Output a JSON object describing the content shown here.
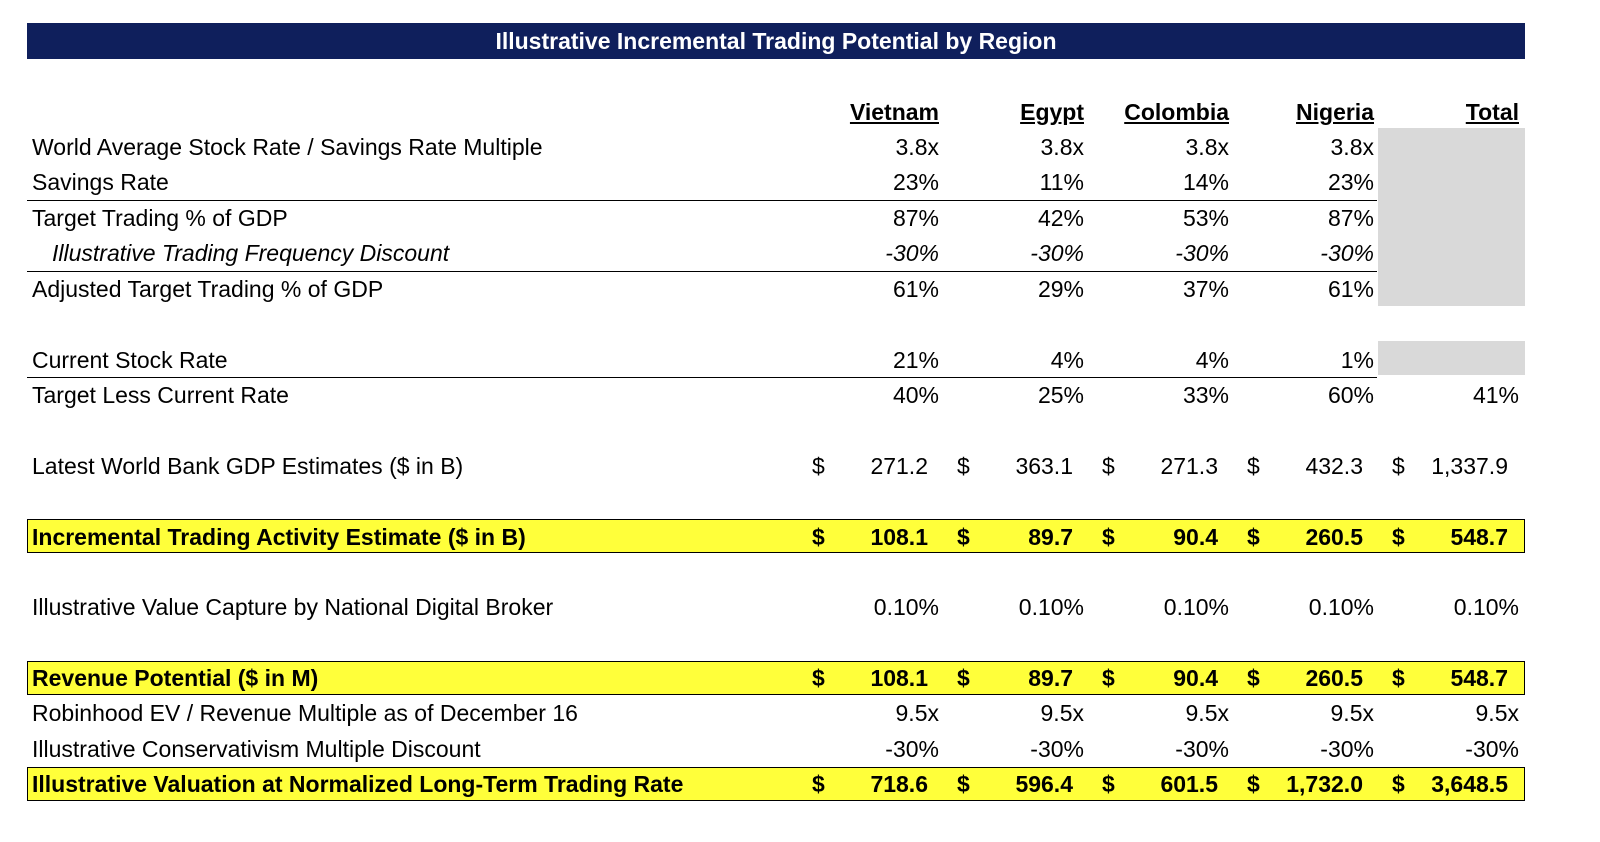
{
  "title": "Illustrative Incremental Trading Potential by Region",
  "colors": {
    "banner": "#0f1f5c",
    "highlight": "#ffff3a",
    "shade": "#d9d9d9"
  },
  "columns": [
    "Vietnam",
    "Egypt",
    "Colombia",
    "Nigeria",
    "Total"
  ],
  "rows": [
    {
      "label": "World Average Stock Rate / Savings Rate Multiple",
      "values": [
        "3.8x",
        "3.8x",
        "3.8x",
        "3.8x",
        ""
      ]
    },
    {
      "label": "Savings Rate",
      "values": [
        "23%",
        "11%",
        "14%",
        "23%",
        ""
      ]
    },
    {
      "label": "Target Trading % of GDP",
      "values": [
        "87%",
        "42%",
        "53%",
        "87%",
        ""
      ]
    },
    {
      "label": "Illustrative Trading Frequency Discount",
      "values": [
        "-30%",
        "-30%",
        "-30%",
        "-30%",
        ""
      ]
    },
    {
      "label": "Adjusted Target Trading % of GDP",
      "values": [
        "61%",
        "29%",
        "37%",
        "61%",
        ""
      ]
    },
    {
      "label": "Current Stock Rate",
      "values": [
        "21%",
        "4%",
        "4%",
        "1%",
        ""
      ]
    },
    {
      "label": "Target Less Current Rate",
      "values": [
        "40%",
        "25%",
        "33%",
        "60%",
        "41%"
      ]
    },
    {
      "label": "Latest World Bank GDP Estimates ($ in B)",
      "currency": "$",
      "values": [
        "271.2",
        "363.1",
        "271.3",
        "432.3",
        "1,337.9"
      ]
    },
    {
      "label": "Incremental Trading Activity Estimate ($ in B)",
      "currency": "$",
      "values": [
        "108.1",
        "89.7",
        "90.4",
        "260.5",
        "548.7"
      ]
    },
    {
      "label": "Illustrative Value Capture by National Digital Broker",
      "values": [
        "0.10%",
        "0.10%",
        "0.10%",
        "0.10%",
        "0.10%"
      ]
    },
    {
      "label": "Revenue Potential ($ in M)",
      "currency": "$",
      "values": [
        "108.1",
        "89.7",
        "90.4",
        "260.5",
        "548.7"
      ]
    },
    {
      "label": "Robinhood EV / Revenue Multiple as of December 16",
      "values": [
        "9.5x",
        "9.5x",
        "9.5x",
        "9.5x",
        "9.5x"
      ]
    },
    {
      "label": "Illustrative Conservativism Multiple Discount",
      "values": [
        "-30%",
        "-30%",
        "-30%",
        "-30%",
        "-30%"
      ]
    },
    {
      "label": "Illustrative Valuation at Normalized Long-Term Trading Rate",
      "currency": "$",
      "values": [
        "718.6",
        "596.4",
        "601.5",
        "1,732.0",
        "3,648.5"
      ]
    }
  ]
}
